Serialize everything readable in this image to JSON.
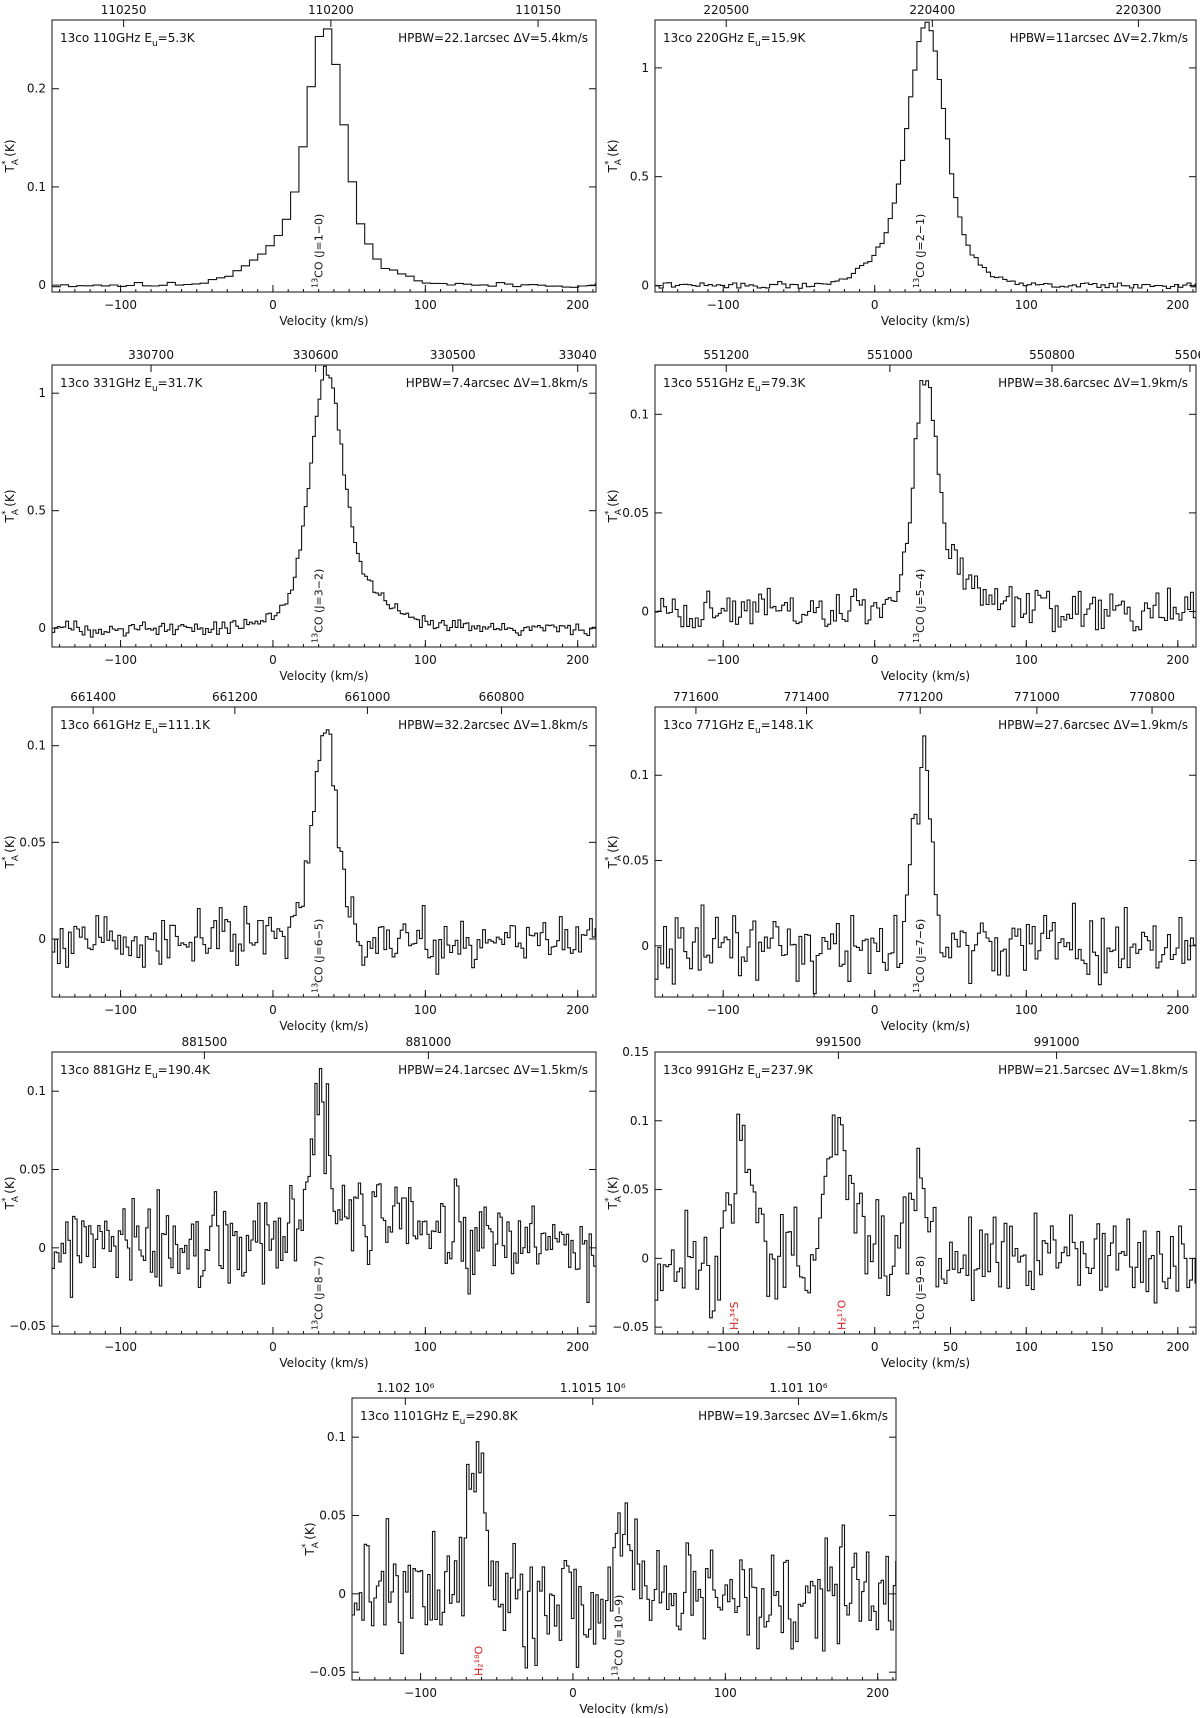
{
  "chart_data": [
    {
      "type": "line",
      "panel": "13co 110GHz",
      "info_left": {
        "prefix": "13co  110GHz E",
        "sub": "u",
        "suffix": "=5.3K"
      },
      "info_right": "HPBW=22.1arcsec ΔV=5.4km/s",
      "xlabel": "Velocity (km/s)",
      "xlim": [
        -145,
        212
      ],
      "ylim": [
        -0.007,
        0.27
      ],
      "yticks": [
        0,
        0.1,
        0.2
      ],
      "ytick_labels": [
        "0",
        "0.1",
        "0.2"
      ],
      "xticks": [
        -100,
        0,
        100,
        200
      ],
      "xtick_labels": [
        "−100",
        "0",
        "100",
        "200"
      ],
      "top_axis": {
        "ticks": [
          {
            "v": -98,
            "label": "110250"
          },
          {
            "v": 38,
            "label": "110200"
          },
          {
            "v": 174,
            "label": "110150"
          }
        ]
      },
      "line_labels": [
        {
          "v": 30,
          "iso": "13",
          "text": "CO (J=1−0)",
          "color": "#111111"
        }
      ],
      "profile": {
        "components": [
          {
            "center": 32,
            "amp": 0.2,
            "width": 11
          },
          {
            "center": 25,
            "amp": 0.065,
            "width": 30
          }
        ],
        "noise": 0.0015,
        "step": 5.4,
        "seed": 11
      }
    },
    {
      "type": "line",
      "panel": "13co 220GHz",
      "info_left": {
        "prefix": "13co  220GHz E",
        "sub": "u",
        "suffix": "=15.9K"
      },
      "info_right": "HPBW=11arcsec ΔV=2.7km/s",
      "xlabel": "Velocity (km/s)",
      "xlim": [
        -145,
        212
      ],
      "ylim": [
        -0.03,
        1.22
      ],
      "yticks": [
        0,
        0.5,
        1
      ],
      "ytick_labels": [
        "0",
        "0.5",
        "1"
      ],
      "xticks": [
        -100,
        0,
        100,
        200
      ],
      "xtick_labels": [
        "−100",
        "0",
        "100",
        "200"
      ],
      "top_axis": {
        "ticks": [
          {
            "v": -98,
            "label": "220500"
          },
          {
            "v": 38,
            "label": "220400"
          },
          {
            "v": 174,
            "label": "220300"
          }
        ]
      },
      "line_labels": [
        {
          "v": 30,
          "iso": "13",
          "text": "CO (J=2−1)",
          "color": "#111111"
        }
      ],
      "profile": {
        "components": [
          {
            "center": 33,
            "amp": 0.88,
            "width": 11
          },
          {
            "center": 30,
            "amp": 0.33,
            "width": 24
          }
        ],
        "noise": 0.008,
        "step": 2.7,
        "seed": 22
      }
    },
    {
      "type": "line",
      "panel": "13co 331GHz",
      "info_left": {
        "prefix": "13co  331GHz E",
        "sub": "u",
        "suffix": "=31.7K"
      },
      "info_right": "HPBW=7.4arcsec ΔV=1.8km/s",
      "xlabel": "Velocity (km/s)",
      "xlim": [
        -145,
        212
      ],
      "ylim": [
        -0.08,
        1.12
      ],
      "yticks": [
        0,
        0.5,
        1
      ],
      "ytick_labels": [
        "0",
        "0.5",
        "1"
      ],
      "xticks": [
        -100,
        0,
        100,
        200
      ],
      "xtick_labels": [
        "−100",
        "0",
        "100",
        "200"
      ],
      "top_axis": {
        "ticks": [
          {
            "v": -80,
            "label": "330700"
          },
          {
            "v": 28,
            "label": "330600"
          },
          {
            "v": 118,
            "label": "330500"
          },
          {
            "v": 200,
            "label": "33040"
          }
        ]
      },
      "line_labels": [
        {
          "v": 30,
          "iso": "13",
          "text": "CO (J=3−2)",
          "color": "#111111"
        }
      ],
      "profile": {
        "components": [
          {
            "center": 34,
            "amp": 0.85,
            "width": 10
          },
          {
            "center": 42,
            "amp": 0.25,
            "width": 25
          }
        ],
        "noise": 0.018,
        "step": 1.8,
        "seed": 33
      }
    },
    {
      "type": "line",
      "panel": "13co 551GHz",
      "info_left": {
        "prefix": "13co  551GHz E",
        "sub": "u",
        "suffix": "=79.3K"
      },
      "info_right": "HPBW=38.6arcsec ΔV=1.9km/s",
      "xlabel": "Velocity (km/s)",
      "xlim": [
        -145,
        212
      ],
      "ylim": [
        -0.018,
        0.125
      ],
      "yticks": [
        0,
        0.05,
        0.1
      ],
      "ytick_labels": [
        "0",
        "0.05",
        "0.1"
      ],
      "xticks": [
        -100,
        0,
        100,
        200
      ],
      "xtick_labels": [
        "−100",
        "0",
        "100",
        "200"
      ],
      "top_axis": {
        "ticks": [
          {
            "v": -98,
            "label": "551200"
          },
          {
            "v": 10,
            "label": "551000"
          },
          {
            "v": 117,
            "label": "550800"
          },
          {
            "v": 208,
            "label": "5506"
          }
        ]
      },
      "line_labels": [
        {
          "v": 30,
          "iso": "13",
          "text": "CO (J=5−4)",
          "color": "#111111"
        }
      ],
      "profile": {
        "components": [
          {
            "center": 32,
            "amp": 0.1,
            "width": 7
          },
          {
            "center": 45,
            "amp": 0.028,
            "width": 18
          }
        ],
        "noise": 0.006,
        "step": 1.9,
        "seed": 44
      }
    },
    {
      "type": "line",
      "panel": "13co 661GHz",
      "info_left": {
        "prefix": "13co  661GHz E",
        "sub": "u",
        "suffix": "=111.1K"
      },
      "info_right": "HPBW=32.2arcsec ΔV=1.8km/s",
      "xlabel": "Velocity (km/s)",
      "xlim": [
        -145,
        212
      ],
      "ylim": [
        -0.03,
        0.12
      ],
      "yticks": [
        0,
        0.05,
        0.1
      ],
      "ytick_labels": [
        "0",
        "0.05",
        "0.1"
      ],
      "xticks": [
        -100,
        0,
        100,
        200
      ],
      "xtick_labels": [
        "−100",
        "0",
        "100",
        "200"
      ],
      "top_axis": {
        "ticks": [
          {
            "v": -118,
            "label": "661400"
          },
          {
            "v": -25,
            "label": "661200"
          },
          {
            "v": 62,
            "label": "661000"
          },
          {
            "v": 150,
            "label": "660800"
          }
        ]
      },
      "line_labels": [
        {
          "v": 30,
          "iso": "13",
          "text": "CO (J=6−5)",
          "color": "#111111"
        }
      ],
      "profile": {
        "components": [
          {
            "center": 33,
            "amp": 0.11,
            "width": 8
          }
        ],
        "noise": 0.008,
        "step": 1.8,
        "seed": 55
      }
    },
    {
      "type": "line",
      "panel": "13co 771GHz",
      "info_left": {
        "prefix": "13co  771GHz E",
        "sub": "u",
        "suffix": "=148.1K"
      },
      "info_right": "HPBW=27.6arcsec ΔV=1.9km/s",
      "xlabel": "Velocity (km/s)",
      "xlim": [
        -145,
        212
      ],
      "ylim": [
        -0.03,
        0.14
      ],
      "yticks": [
        0,
        0.05,
        0.1
      ],
      "ytick_labels": [
        "0",
        "0.05",
        "0.1"
      ],
      "xticks": [
        -100,
        0,
        100,
        200
      ],
      "xtick_labels": [
        "−100",
        "0",
        "100",
        "200"
      ],
      "top_axis": {
        "ticks": [
          {
            "v": -118,
            "label": "771600"
          },
          {
            "v": -45,
            "label": "771400"
          },
          {
            "v": 30,
            "label": "771200"
          },
          {
            "v": 107,
            "label": "771000"
          },
          {
            "v": 183,
            "label": "770800"
          }
        ]
      },
      "line_labels": [
        {
          "v": 30,
          "iso": "13",
          "text": "CO (J=7−6)",
          "color": "#111111"
        }
      ],
      "profile": {
        "components": [
          {
            "center": 31,
            "amp": 0.11,
            "width": 6
          }
        ],
        "noise": 0.012,
        "step": 1.9,
        "seed": 66
      }
    },
    {
      "type": "line",
      "panel": "13co 881GHz",
      "info_left": {
        "prefix": "13co  881GHz E",
        "sub": "u",
        "suffix": "=190.4K"
      },
      "info_right": "HPBW=24.1arcsec ΔV=1.5km/s",
      "xlabel": "Velocity (km/s)",
      "xlim": [
        -145,
        212
      ],
      "ylim": [
        -0.055,
        0.125
      ],
      "yticks": [
        -0.05,
        0,
        0.05,
        0.1
      ],
      "ytick_labels": [
        "−0.05",
        "0",
        "0.05",
        "0.1"
      ],
      "xticks": [
        -100,
        0,
        100,
        200
      ],
      "xtick_labels": [
        "−100",
        "0",
        "100",
        "200"
      ],
      "top_axis": {
        "ticks": [
          {
            "v": -45,
            "label": "881500"
          },
          {
            "v": 102,
            "label": "881000"
          }
        ]
      },
      "line_labels": [
        {
          "v": 30,
          "iso": "13",
          "text": "CO (J=8−7)",
          "color": "#111111"
        }
      ],
      "profile": {
        "components": [
          {
            "center": 30,
            "amp": 0.085,
            "width": 5
          },
          {
            "center": 60,
            "amp": 0.02,
            "width": 35
          }
        ],
        "noise": 0.018,
        "step": 1.5,
        "seed": 77
      }
    },
    {
      "type": "line",
      "panel": "13co 991GHz",
      "info_left": {
        "prefix": "13co  991GHz E",
        "sub": "u",
        "suffix": "=237.9K"
      },
      "info_right": "HPBW=21.5arcsec ΔV=1.8km/s",
      "xlabel": "Velocity (km/s)",
      "xlim": [
        -145,
        212
      ],
      "ylim": [
        -0.055,
        0.15
      ],
      "yticks": [
        -0.05,
        0,
        0.05,
        0.1,
        0.15
      ],
      "ytick_labels": [
        "−0.05",
        "0",
        "0.05",
        "0.1",
        "0.15"
      ],
      "xticks": [
        -100,
        -50,
        0,
        50,
        100,
        150,
        200
      ],
      "xtick_labels": [
        "−100",
        "−50",
        "0",
        "50",
        "100",
        "150",
        "200"
      ],
      "top_axis": {
        "ticks": [
          {
            "v": -24,
            "label": "991500"
          },
          {
            "v": 120,
            "label": "991000"
          }
        ]
      },
      "line_labels": [
        {
          "v": -93,
          "text": "H2 34S",
          "html": "H₂³⁴S",
          "color": "#d42020"
        },
        {
          "v": -22,
          "text": "H2 17O",
          "html": "H₂¹⁷O",
          "color": "#d42020"
        },
        {
          "v": 30,
          "iso": "13",
          "text": "CO (J=9−8)",
          "color": "#111111"
        }
      ],
      "profile": {
        "components": [
          {
            "center": -88,
            "amp": 0.085,
            "width": 6
          },
          {
            "center": -25,
            "amp": 0.105,
            "width": 6
          },
          {
            "center": 30,
            "amp": 0.045,
            "width": 5
          }
        ],
        "noise": 0.02,
        "step": 1.8,
        "seed": 88
      }
    },
    {
      "type": "line",
      "panel": "13co 1101GHz",
      "info_left": {
        "prefix": "13co  1101GHz E",
        "sub": "u",
        "suffix": "=290.8K"
      },
      "info_right": "HPBW=19.3arcsec ΔV=1.6km/s",
      "xlabel": "Velocity (km/s)",
      "xlim": [
        -145,
        212
      ],
      "ylim": [
        -0.055,
        0.125
      ],
      "yticks": [
        -0.05,
        0,
        0.05,
        0.1
      ],
      "ytick_labels": [
        "−0.05",
        "0",
        "0.05",
        "0.1"
      ],
      "xticks": [
        -100,
        0,
        100,
        200
      ],
      "xtick_labels": [
        "−100",
        "0",
        "100",
        "200"
      ],
      "top_axis": {
        "ticks": [
          {
            "v": -110,
            "label": "1.102 10⁶"
          },
          {
            "v": 13,
            "label": "1.1015 10⁶"
          },
          {
            "v": 148,
            "label": "1.101 10⁶"
          }
        ]
      },
      "line_labels": [
        {
          "v": -62,
          "text": "H2 18O",
          "html": "H₂¹⁸O",
          "color": "#d42020"
        },
        {
          "v": 30,
          "iso": "13",
          "text": "CO (J=10−9)",
          "color": "#111111"
        }
      ],
      "profile": {
        "components": [
          {
            "center": -65,
            "amp": 0.085,
            "width": 6
          },
          {
            "center": 35,
            "amp": 0.04,
            "width": 6
          }
        ],
        "noise": 0.022,
        "step": 1.6,
        "seed": 99
      }
    }
  ],
  "ylabel": {
    "main": "T",
    "sub": "A",
    "sup": "*",
    "unit": " (K)"
  }
}
